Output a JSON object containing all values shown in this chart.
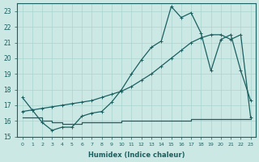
{
  "xlabel": "Humidex (Indice chaleur)",
  "ylabel": "",
  "xlim": [
    -0.5,
    23.5
  ],
  "ylim": [
    15,
    23.5
  ],
  "yticks": [
    15,
    16,
    17,
    18,
    19,
    20,
    21,
    22,
    23
  ],
  "xticks": [
    0,
    1,
    2,
    3,
    4,
    5,
    6,
    7,
    8,
    9,
    10,
    11,
    12,
    13,
    14,
    15,
    16,
    17,
    18,
    19,
    20,
    21,
    22,
    23
  ],
  "bg_color": "#cce8e5",
  "grid_color": "#aad4d0",
  "line_color": "#1a6060",
  "x": [
    0,
    1,
    2,
    3,
    4,
    5,
    6,
    7,
    8,
    9,
    10,
    11,
    12,
    13,
    14,
    15,
    16,
    17,
    18,
    19,
    20,
    21,
    22,
    23
  ],
  "y_main": [
    17.5,
    16.7,
    15.9,
    15.4,
    15.6,
    15.6,
    16.3,
    16.5,
    16.6,
    17.2,
    18.0,
    19.0,
    19.9,
    20.7,
    21.1,
    23.3,
    22.6,
    22.9,
    21.6,
    19.2,
    21.2,
    21.5,
    19.2,
    17.3
  ],
  "y_trend": [
    16.6,
    16.7,
    16.8,
    16.9,
    17.0,
    17.1,
    17.2,
    17.3,
    17.5,
    17.7,
    17.9,
    18.2,
    18.6,
    19.0,
    19.5,
    20.0,
    20.5,
    21.0,
    21.3,
    21.5,
    21.5,
    21.2,
    21.5,
    16.2
  ],
  "y_min": [
    16.2,
    16.2,
    16.0,
    15.9,
    15.8,
    15.8,
    15.9,
    15.9,
    15.9,
    15.9,
    16.0,
    16.0,
    16.0,
    16.0,
    16.0,
    16.0,
    16.0,
    16.1,
    16.1,
    16.1,
    16.1,
    16.1,
    16.1,
    16.2
  ]
}
